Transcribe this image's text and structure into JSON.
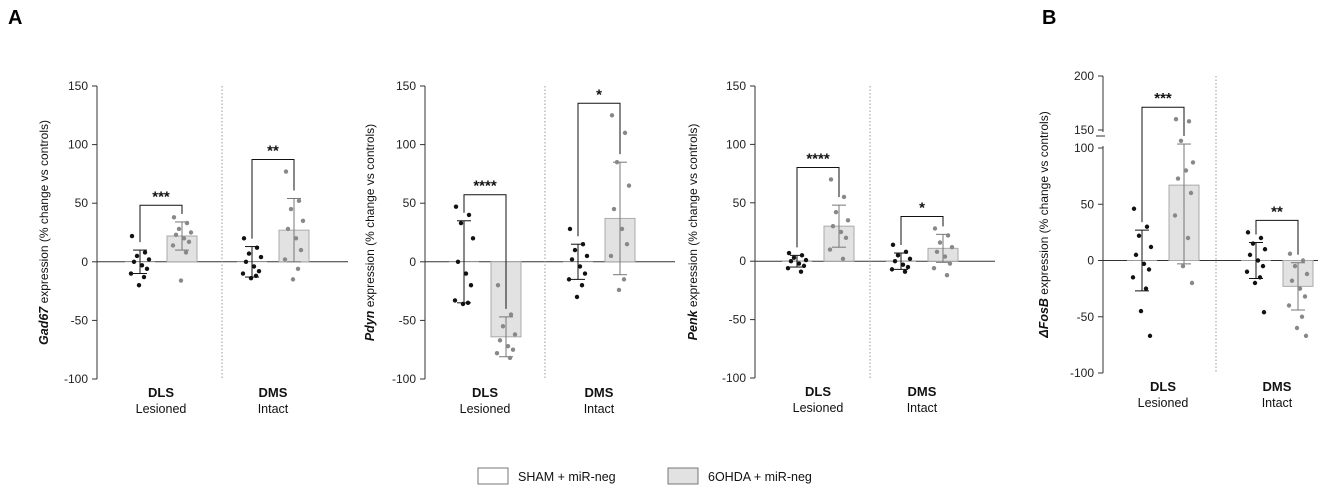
{
  "panel_letters": [
    "A",
    "B"
  ],
  "legend": [
    {
      "label": "SHAM + miR-neg",
      "color": "#ffffff"
    },
    {
      "label": "6OHDA + miR-neg",
      "color": "#e2e2e2"
    }
  ],
  "chart_data": [
    {
      "type": "bar",
      "ylabel_gene": "Gad67",
      "ylabel_rest": " expression (% change vs controls)",
      "ylim": [
        -100,
        150
      ],
      "yticks": [
        -100,
        -50,
        0,
        50,
        100,
        150
      ],
      "groups": [
        {
          "region": "DLS",
          "status": "Lesioned",
          "significance": "***",
          "sham": {
            "mean": 0,
            "sd": 10,
            "points": [
              22,
              8,
              5,
              2,
              0,
              -3,
              -6,
              -10,
              -13,
              -20
            ]
          },
          "ohda": {
            "mean": 22,
            "sd": 12,
            "points": [
              38,
              33,
              28,
              25,
              23,
              20,
              17,
              14,
              8,
              -16
            ]
          }
        },
        {
          "region": "DMS",
          "status": "Intact",
          "significance": "**",
          "sham": {
            "mean": 0,
            "sd": 13,
            "points": [
              20,
              12,
              7,
              4,
              0,
              -4,
              -8,
              -10,
              -12,
              -14
            ]
          },
          "ohda": {
            "mean": 27,
            "sd": 27,
            "points": [
              77,
              52,
              45,
              35,
              28,
              20,
              10,
              2,
              -6,
              -15
            ]
          }
        }
      ]
    },
    {
      "type": "bar",
      "ylabel_gene": "Pdyn",
      "ylabel_rest": " expression (% change vs controls)",
      "ylim": [
        -100,
        150
      ],
      "yticks": [
        -100,
        -50,
        0,
        50,
        100,
        150
      ],
      "groups": [
        {
          "region": "DLS",
          "status": "Lesioned",
          "significance": "****",
          "sham": {
            "mean": 0,
            "sd": 35,
            "points": [
              47,
              40,
              33,
              20,
              0,
              -10,
              -20,
              -33,
              -35,
              -36
            ]
          },
          "ohda": {
            "mean": -64,
            "sd": 17,
            "points": [
              -20,
              -45,
              -55,
              -62,
              -67,
              -72,
              -75,
              -78,
              -82
            ]
          }
        },
        {
          "region": "DMS",
          "status": "Intact",
          "significance": "*",
          "sham": {
            "mean": 0,
            "sd": 15,
            "points": [
              28,
              15,
              10,
              5,
              2,
              -4,
              -10,
              -15,
              -20,
              -30
            ]
          },
          "ohda": {
            "mean": 37,
            "sd": 48,
            "points": [
              125,
              110,
              85,
              65,
              45,
              28,
              15,
              5,
              -15,
              -24
            ]
          }
        }
      ]
    },
    {
      "type": "bar",
      "ylabel_gene": "Penk",
      "ylabel_rest": " expression (% change vs controls)",
      "ylim": [
        -100,
        150
      ],
      "yticks": [
        -100,
        -50,
        0,
        50,
        100,
        150
      ],
      "groups": [
        {
          "region": "DLS",
          "status": "Lesioned",
          "significance": "****",
          "sham": {
            "mean": 0,
            "sd": 5,
            "points": [
              7,
              5,
              3,
              1,
              0,
              -2,
              -4,
              -6,
              -9
            ]
          },
          "ohda": {
            "mean": 30,
            "sd": 18,
            "points": [
              70,
              55,
              42,
              35,
              30,
              25,
              20,
              10,
              2
            ]
          }
        },
        {
          "region": "DMS",
          "status": "Intact",
          "significance": "*",
          "sham": {
            "mean": 0,
            "sd": 7,
            "points": [
              14,
              8,
              5,
              2,
              0,
              -3,
              -5,
              -7,
              -9
            ]
          },
          "ohda": {
            "mean": 11,
            "sd": 12,
            "points": [
              28,
              22,
              16,
              12,
              8,
              4,
              -2,
              -6,
              -12
            ]
          }
        }
      ]
    },
    {
      "type": "bar",
      "ylabel_gene": "ΔFosB",
      "ylabel_rest": " expression (% change vs controls)",
      "ylim": [
        -100,
        200
      ],
      "yticks": [
        -100,
        -50,
        0,
        50,
        100,
        150,
        200
      ],
      "broken_axis": true,
      "groups": [
        {
          "region": "DLS",
          "status": "Lesioned",
          "significance": "***",
          "sham": {
            "mean": 0,
            "sd": 27,
            "points": [
              46,
              30,
              22,
              12,
              5,
              -3,
              -8,
              -15,
              -25,
              -45,
              -67
            ]
          },
          "ohda": {
            "mean": 67,
            "sd": 70,
            "points": [
              160,
              158,
              140,
              120,
              105,
              80,
              60,
              40,
              20,
              -5,
              -20
            ]
          }
        },
        {
          "region": "DMS",
          "status": "Intact",
          "significance": "**",
          "sham": {
            "mean": 0,
            "sd": 16,
            "points": [
              25,
              20,
              15,
              10,
              5,
              0,
              -5,
              -10,
              -15,
              -20,
              -46
            ]
          },
          "ohda": {
            "mean": -23,
            "sd": 21,
            "points": [
              6,
              0,
              -5,
              -12,
              -18,
              -25,
              -32,
              -40,
              -50,
              -60,
              -67
            ]
          }
        }
      ]
    }
  ]
}
